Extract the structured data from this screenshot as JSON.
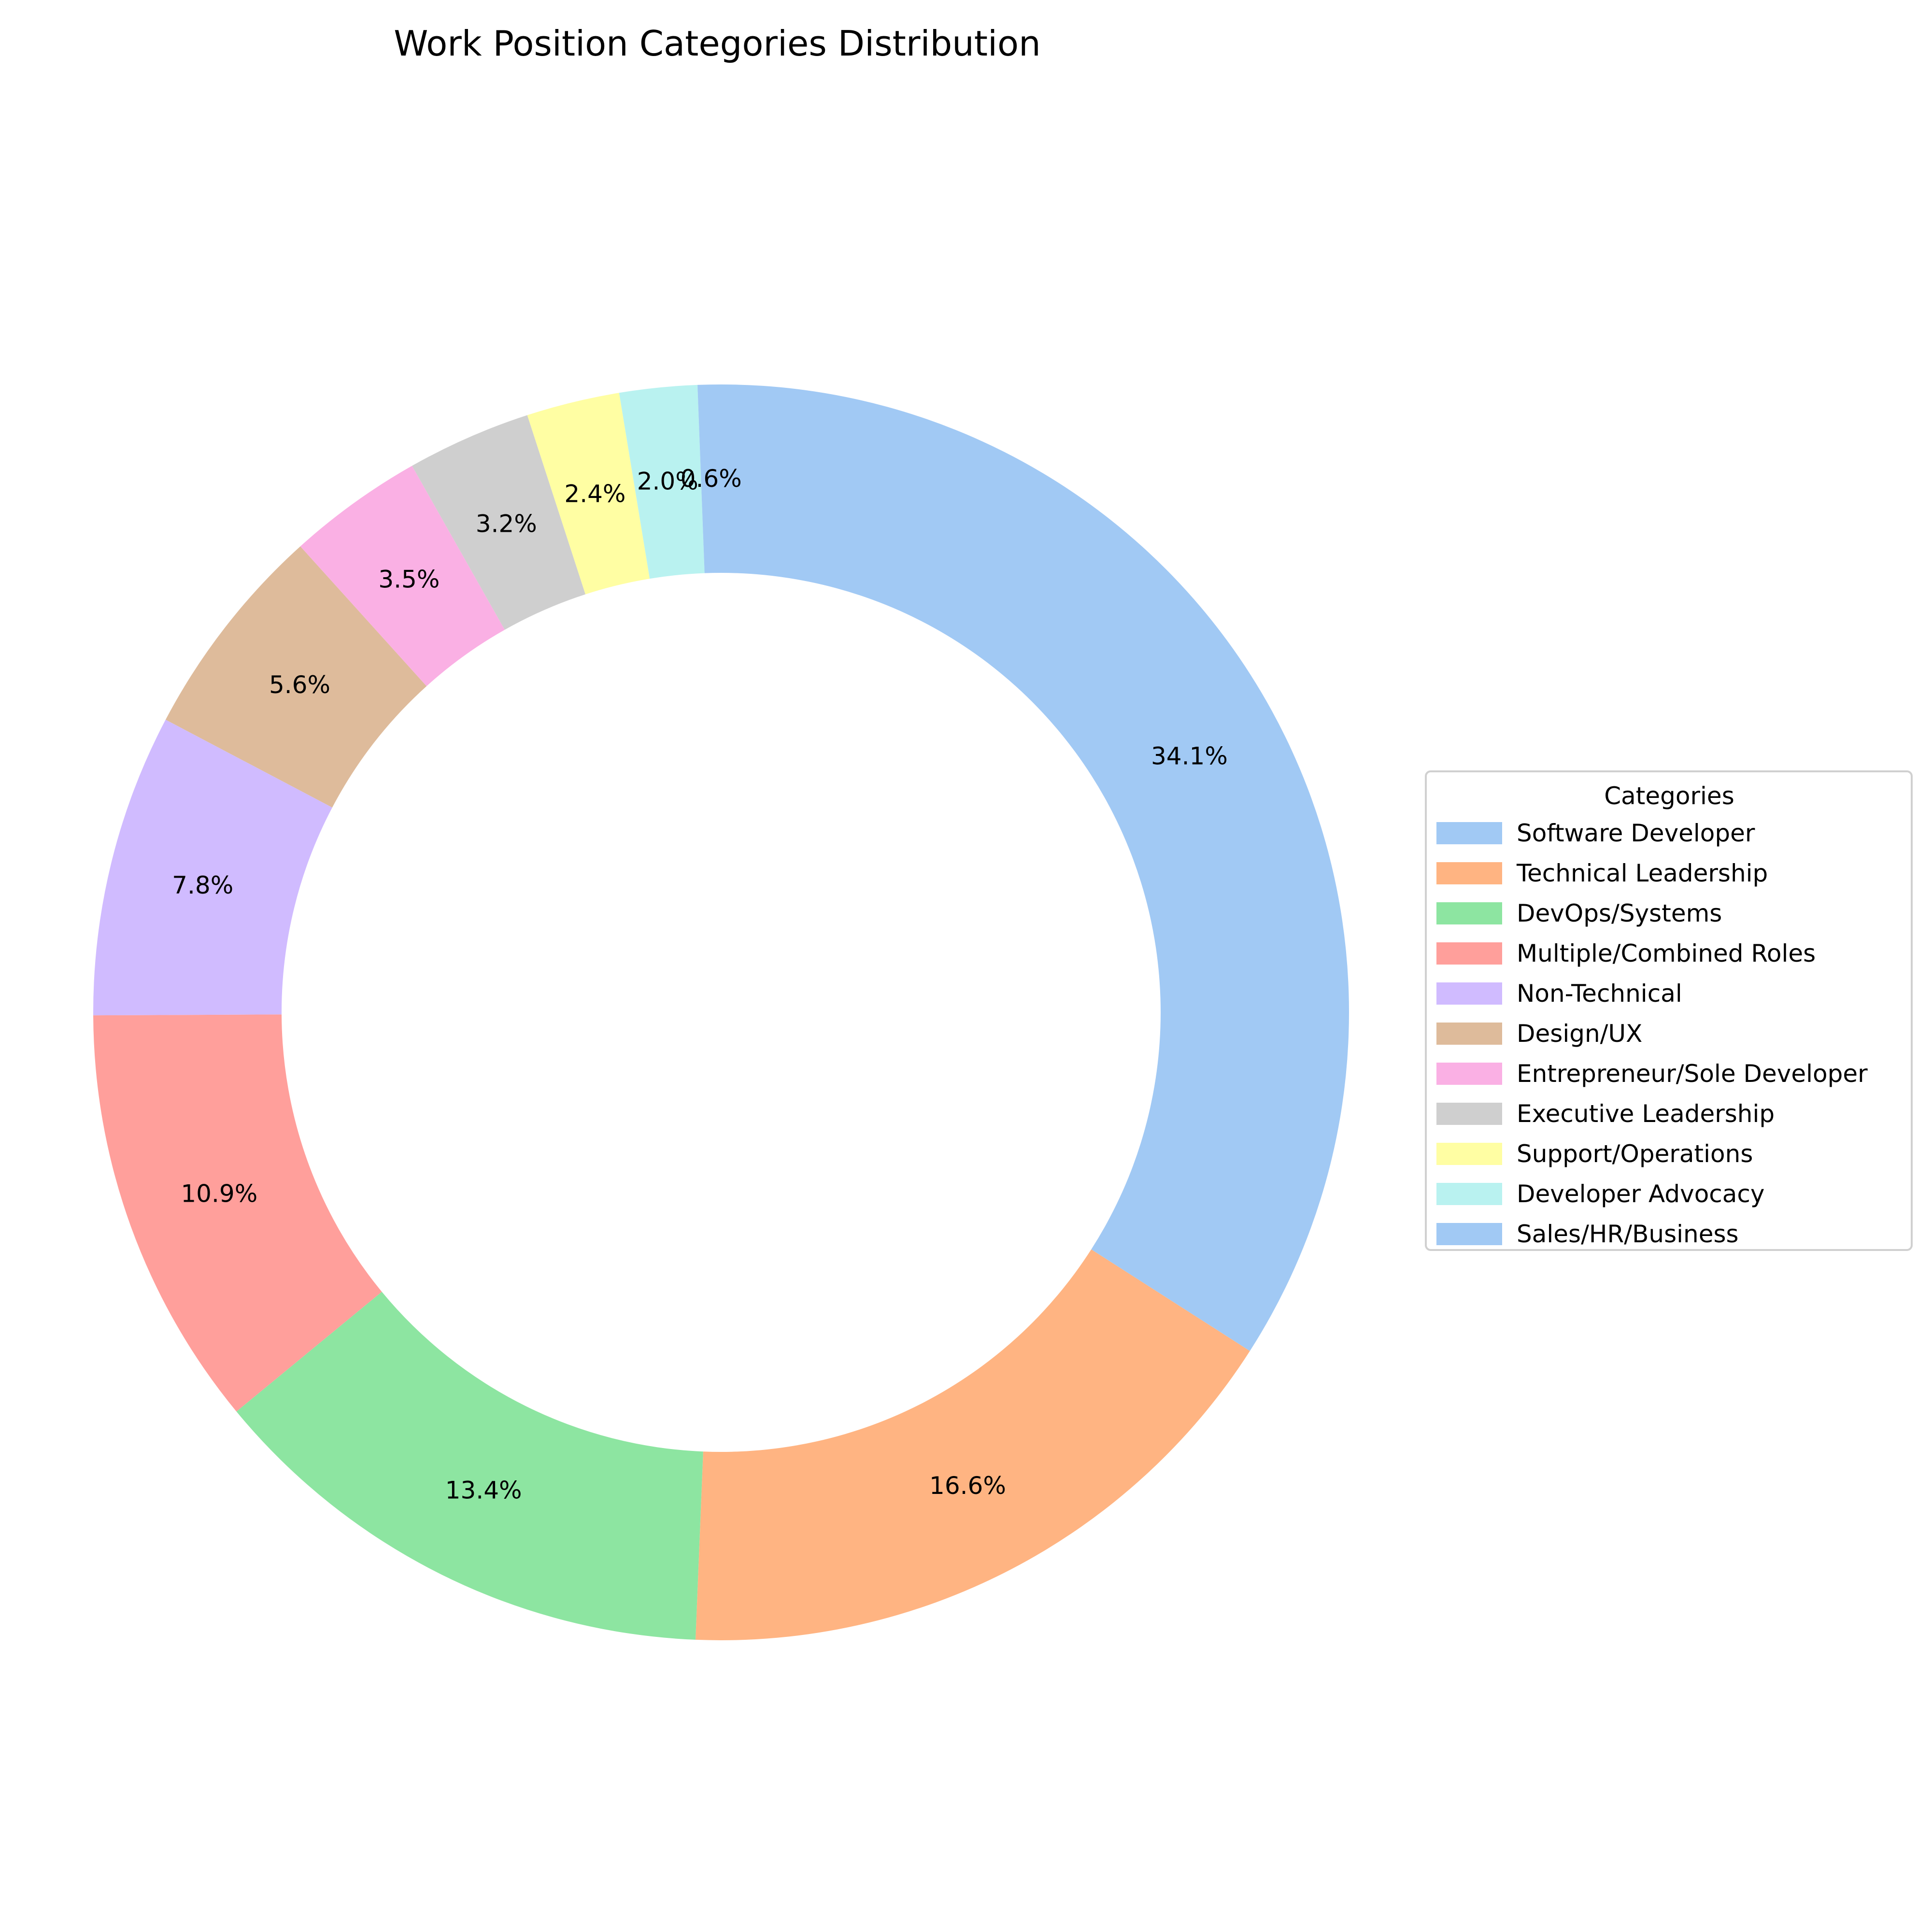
{
  "chart_data": {
    "type": "pie",
    "style": "donut",
    "title": "Work Position Categories Distribution",
    "start_angle_deg": 90,
    "direction": "clockwise",
    "legend": {
      "title": "Categories",
      "placement": "right"
    },
    "slices": [
      {
        "label": "Software Developer",
        "value": 34.1,
        "display": "34.1%",
        "color": "#a1c9f4"
      },
      {
        "label": "Technical Leadership",
        "value": 16.6,
        "display": "16.6%",
        "color": "#ffb482"
      },
      {
        "label": "DevOps/Systems",
        "value": 13.4,
        "display": "13.4%",
        "color": "#8de5a1"
      },
      {
        "label": "Multiple/Combined Roles",
        "value": 10.9,
        "display": "10.9%",
        "color": "#ff9f9b"
      },
      {
        "label": "Non-Technical",
        "value": 7.8,
        "display": "7.8%",
        "color": "#d0bbff"
      },
      {
        "label": "Design/UX",
        "value": 5.6,
        "display": "5.6%",
        "color": "#debb9b"
      },
      {
        "label": "Entrepreneur/Sole Developer",
        "value": 3.5,
        "display": "3.5%",
        "color": "#fab0e4"
      },
      {
        "label": "Executive Leadership",
        "value": 3.2,
        "display": "3.2%",
        "color": "#cfcfcf"
      },
      {
        "label": "Support/Operations",
        "value": 2.4,
        "display": "2.4%",
        "color": "#fffea3"
      },
      {
        "label": "Developer Advocacy",
        "value": 2.0,
        "display": "2.0%",
        "color": "#b9f2f0"
      },
      {
        "label": "Sales/HR/Business",
        "value": 0.6,
        "display": "0.6%",
        "color": "#a1c9f4"
      }
    ]
  }
}
